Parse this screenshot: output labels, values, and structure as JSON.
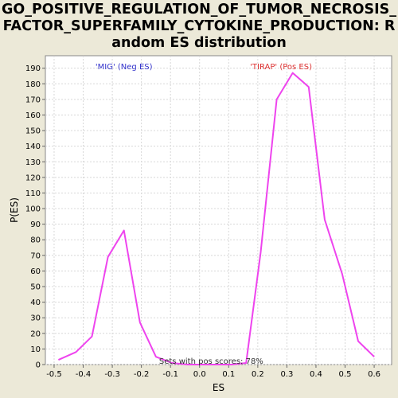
{
  "chart_data": {
    "type": "line",
    "title": "GO_POSITIVE_REGULATION_OF_TUMOR_NECROSIS_FACTOR_SUPERFAMILY_CYTOKINE_PRODUCTION: Random ES distribution",
    "xlabel": "ES",
    "ylabel": "P(ES)",
    "xlim": [
      -0.53,
      0.66
    ],
    "ylim": [
      0,
      198
    ],
    "xticks": [
      -0.5,
      -0.4,
      -0.3,
      -0.2,
      -0.1,
      0.0,
      0.1,
      0.2,
      0.3,
      0.4,
      0.5,
      0.6
    ],
    "xtick_labels": [
      "-0.5",
      "-0.4",
      "-0.3",
      "-0.2",
      "-0.1",
      "0.0",
      "0.1",
      "0.2",
      "0.3",
      "0.4",
      "0.5",
      "0.6"
    ],
    "yticks": [
      0,
      10,
      20,
      30,
      40,
      50,
      60,
      70,
      80,
      90,
      100,
      110,
      120,
      130,
      140,
      150,
      160,
      170,
      180,
      190
    ],
    "grid": true,
    "series": [
      {
        "color": "#EE44EE",
        "x": [
          -0.485,
          -0.425,
          -0.37,
          -0.315,
          -0.26,
          -0.205,
          -0.15,
          -0.095,
          -0.04,
          0.015,
          0.07,
          0.11,
          0.16,
          0.21,
          0.265,
          0.32,
          0.375,
          0.43,
          0.49,
          0.545,
          0.6
        ],
        "y": [
          3,
          8,
          18,
          69,
          86,
          27,
          5,
          1,
          0,
          0,
          0,
          0,
          1,
          72,
          170,
          187,
          178,
          93,
          58,
          15,
          5
        ]
      }
    ],
    "annotations": {
      "neg": {
        "text": "'MIG' (Neg ES)",
        "color": "#3333CC",
        "x": -0.26
      },
      "pos": {
        "text": "'TIRAP' (Pos ES)",
        "color": "#DD3333",
        "x": 0.28
      },
      "footer": {
        "text": "Sets with pos scores: 78%",
        "color": "#333333",
        "x": 0.04
      }
    }
  }
}
